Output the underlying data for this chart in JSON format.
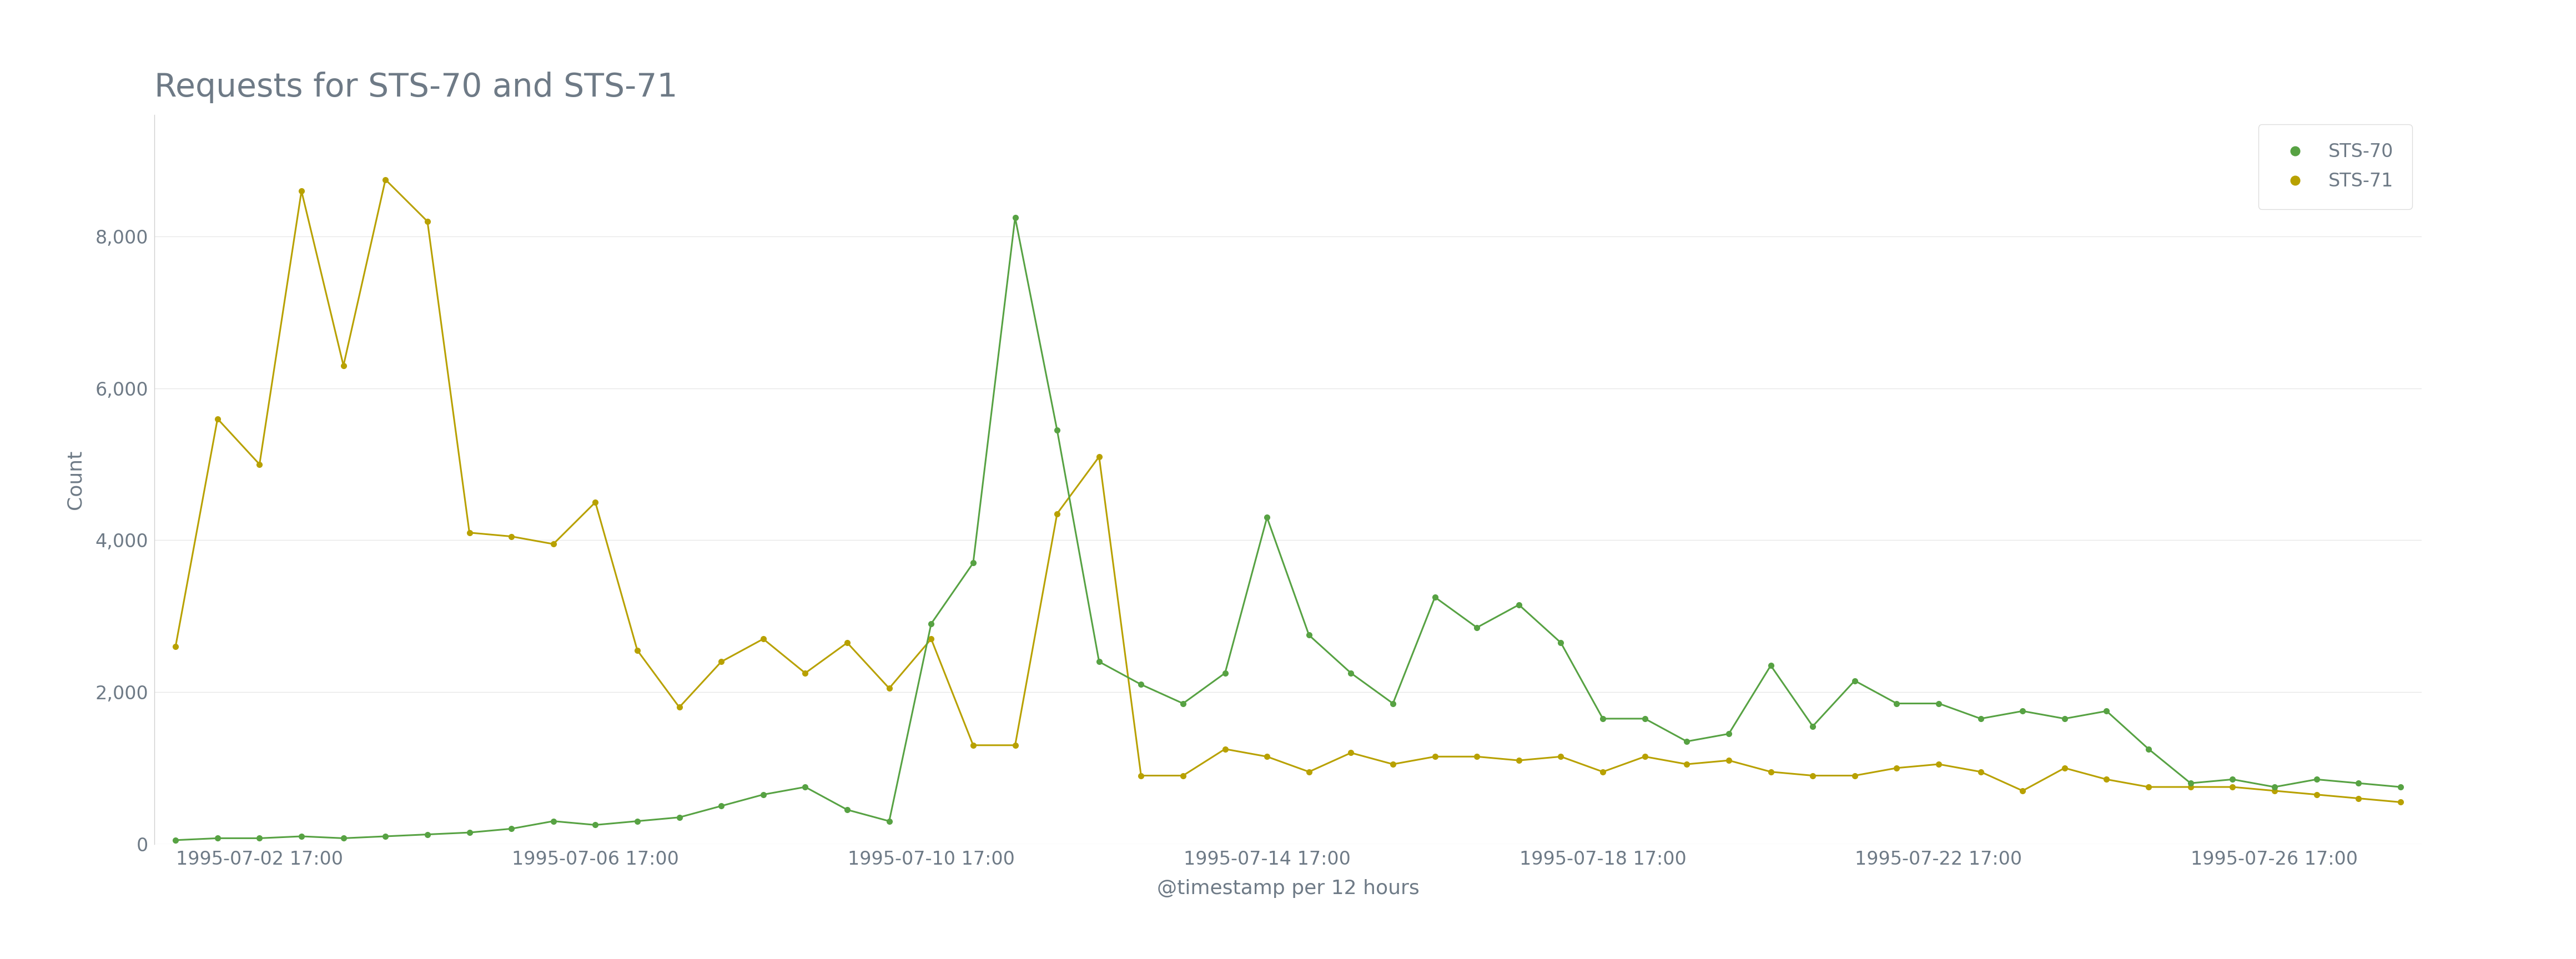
{
  "title": "Requests for STS-70 and STS-71",
  "xlabel": "@timestamp per 12 hours",
  "ylabel": "Count",
  "background_color": "#ffffff",
  "title_color": "#6e7a86",
  "axis_label_color": "#6e7a86",
  "tick_color": "#6e7a86",
  "grid_color": "#e8e8e8",
  "sts70_color": "#57a243",
  "sts71_color": "#b8a100",
  "ylim": [
    0,
    9600
  ],
  "yticks": [
    0,
    2000,
    4000,
    6000,
    8000
  ],
  "sts71": [
    2600,
    5600,
    5000,
    8600,
    6300,
    8750,
    8200,
    4100,
    4050,
    3950,
    4500,
    2550,
    1800,
    2400,
    2700,
    2250,
    2650,
    2050,
    2700,
    1300,
    1300,
    4350,
    5100,
    900,
    900,
    1250,
    1150,
    950,
    1200,
    1050,
    1150,
    1150,
    1100,
    1150,
    950,
    1150,
    1050,
    1100,
    950,
    900,
    900,
    1000,
    1050,
    950,
    700,
    1000,
    850,
    750,
    750,
    750,
    700,
    650,
    600,
    550
  ],
  "sts70": [
    50,
    75,
    75,
    100,
    75,
    100,
    125,
    150,
    200,
    300,
    250,
    300,
    350,
    500,
    650,
    750,
    450,
    300,
    2900,
    3700,
    8250,
    5450,
    2400,
    2100,
    1850,
    2250,
    4300,
    2750,
    2250,
    1850,
    3250,
    2850,
    3150,
    2650,
    1650,
    1650,
    1350,
    1450,
    2350,
    1550,
    2150,
    1850,
    1850,
    1650,
    1750,
    1650,
    1750,
    1250,
    800,
    850,
    750,
    850,
    800,
    750
  ],
  "x_tick_indices": [
    2,
    10,
    18,
    26,
    34,
    42,
    50
  ],
  "x_labels": [
    "1995-07-02 17:00",
    "1995-07-06 17:00",
    "1995-07-10 17:00",
    "1995-07-14 17:00",
    "1995-07-18 17:00",
    "1995-07-22 17:00",
    "1995-07-26 17:00"
  ],
  "title_fontsize": 42,
  "tick_fontsize": 24,
  "label_fontsize": 26,
  "legend_fontsize": 24,
  "line_width": 2.2,
  "marker_size": 7
}
